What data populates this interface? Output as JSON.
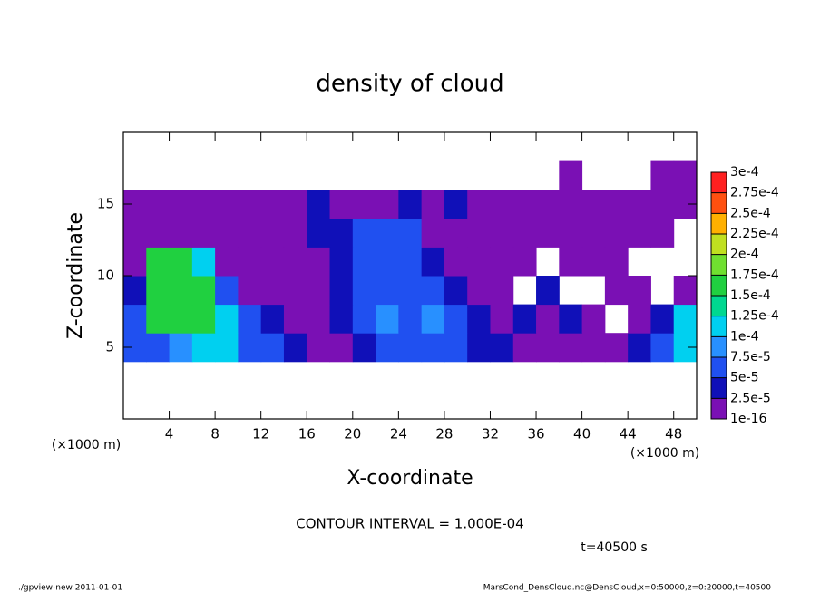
{
  "chart_data": {
    "type": "contour",
    "title": "density of cloud",
    "x_label": "X-coordinate",
    "y_label": "Z-coordinate",
    "x_unit": "(×1000 m)",
    "y_unit": "(×1000 m)",
    "xlim": [
      0,
      50
    ],
    "xticks": [
      4,
      8,
      12,
      16,
      20,
      24,
      28,
      32,
      36,
      40,
      44,
      48
    ],
    "ylim": [
      0,
      20
    ],
    "yticks": [
      5,
      10,
      15
    ],
    "x": [
      1,
      3,
      5,
      7,
      9,
      11,
      13,
      15,
      17,
      19,
      21,
      23,
      25,
      27,
      29,
      31,
      33,
      35,
      37,
      39,
      41,
      43,
      45,
      47,
      49
    ],
    "z": [
      5,
      7,
      9,
      11,
      13,
      15,
      17
    ],
    "values": [
      [
        6e-05,
        6e-05,
        8e-05,
        0.00011,
        0.00011,
        6e-05,
        6e-05,
        3e-05,
        1e-05,
        1e-05,
        3e-05,
        6e-05,
        6e-05,
        6e-05,
        6e-05,
        3e-05,
        3e-05,
        1e-05,
        1e-05,
        1e-05,
        1e-05,
        1e-05,
        3e-05,
        6e-05,
        0.00011
      ],
      [
        6e-05,
        0.00016,
        0.00016,
        0.00016,
        0.00011,
        6e-05,
        3e-05,
        1e-05,
        1e-05,
        3e-05,
        6e-05,
        8e-05,
        6e-05,
        8e-05,
        6e-05,
        3e-05,
        1e-05,
        3e-05,
        1e-05,
        3e-05,
        1e-05,
        null,
        1e-05,
        3e-05,
        0.00011
      ],
      [
        3e-05,
        0.00016,
        0.00016,
        0.00016,
        6e-05,
        1e-05,
        1e-05,
        1e-05,
        1e-05,
        3e-05,
        6e-05,
        6e-05,
        6e-05,
        6e-05,
        3e-05,
        1e-05,
        1e-05,
        null,
        3e-05,
        null,
        null,
        1e-05,
        1e-05,
        null,
        1e-05
      ],
      [
        1e-05,
        0.00016,
        0.00016,
        0.00011,
        1e-05,
        1e-05,
        1e-05,
        1e-05,
        1e-05,
        3e-05,
        6e-05,
        6e-05,
        6e-05,
        3e-05,
        1e-05,
        1e-05,
        1e-05,
        1e-05,
        null,
        1e-05,
        1e-05,
        1e-05,
        null,
        null,
        null
      ],
      [
        1e-05,
        1e-05,
        1e-05,
        1e-05,
        1e-05,
        1e-05,
        1e-05,
        1e-05,
        3e-05,
        3e-05,
        6e-05,
        6e-05,
        6e-05,
        1e-05,
        1e-05,
        1e-05,
        1e-05,
        1e-05,
        1e-05,
        1e-05,
        1e-05,
        1e-05,
        1e-05,
        1e-05,
        null
      ],
      [
        1e-05,
        1e-05,
        1e-05,
        1e-05,
        1e-05,
        1e-05,
        1e-05,
        1e-05,
        3e-05,
        1e-05,
        1e-05,
        1e-05,
        3e-05,
        1e-05,
        3e-05,
        1e-05,
        1e-05,
        1e-05,
        1e-05,
        1e-05,
        1e-05,
        1e-05,
        1e-05,
        1e-05,
        1e-05
      ],
      [
        null,
        null,
        null,
        null,
        null,
        null,
        null,
        null,
        null,
        null,
        null,
        null,
        null,
        null,
        null,
        null,
        null,
        null,
        null,
        1e-05,
        null,
        null,
        null,
        1e-05,
        1e-05
      ]
    ],
    "colorbar": {
      "levels": [
        {
          "value": 1e-16,
          "label": "1e-16"
        },
        {
          "value": 2.5e-05,
          "label": "2.5e-5"
        },
        {
          "value": 5e-05,
          "label": "5e-5"
        },
        {
          "value": 7.5e-05,
          "label": "7.5e-5"
        },
        {
          "value": 0.0001,
          "label": "1e-4"
        },
        {
          "value": 0.000125,
          "label": "1.25e-4"
        },
        {
          "value": 0.00015,
          "label": "1.5e-4"
        },
        {
          "value": 0.000175,
          "label": "1.75e-4"
        },
        {
          "value": 0.0002,
          "label": "2e-4"
        },
        {
          "value": 0.000225,
          "label": "2.25e-4"
        },
        {
          "value": 0.00025,
          "label": "2.5e-4"
        },
        {
          "value": 0.000275,
          "label": "2.75e-4"
        },
        {
          "value": 0.0003,
          "label": "3e-4"
        }
      ],
      "colors": [
        "#7a10b4",
        "#1010b8",
        "#2050f0",
        "#2890ff",
        "#00d0f0",
        "#00d890",
        "#20d040",
        "#70e030",
        "#c0e020",
        "#ffb000",
        "#ff5010",
        "#ff2020",
        "#ff9090"
      ]
    },
    "contour_interval": "CONTOUR INTERVAL = 1.000E-04",
    "time_label": "t=40500 s"
  },
  "footer": {
    "left": "./gpview-new   2011-01-01",
    "right": "MarsCond_DensCloud.nc@DensCloud,x=0:50000,z=0:20000,t=40500"
  }
}
